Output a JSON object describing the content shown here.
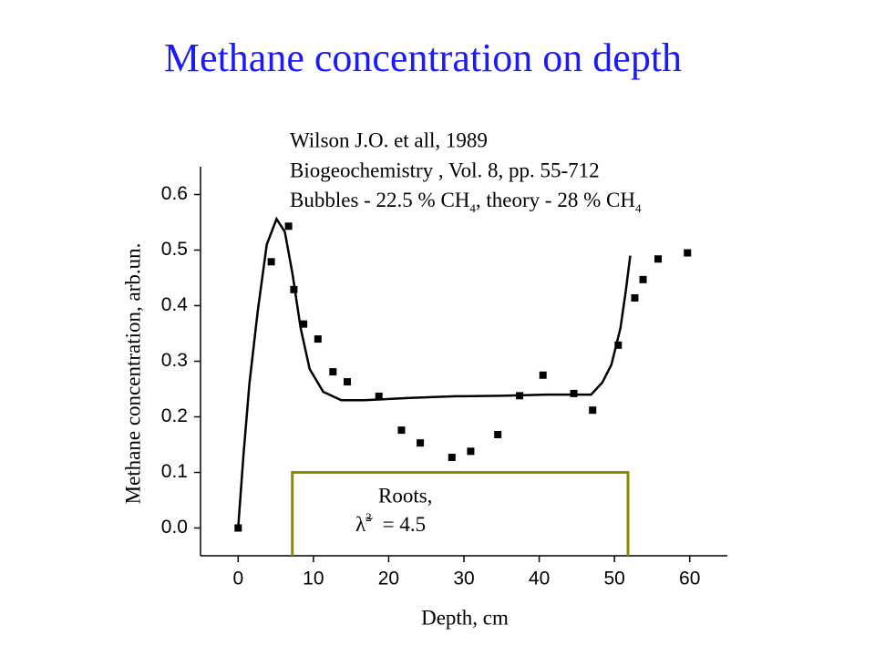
{
  "chart_data": {
    "type": "scatter",
    "title": "Methane concentration on depth",
    "x_label": "Depth, cm",
    "y_label": "Methane concentration, arb.un.",
    "reference": {
      "line1": "Wilson J.O. et all, 1989",
      "line2": "Biogeochemistry , Vol. 8, pp. 55-712",
      "line3": [
        "Bubbles - 22.5 % CH",
        "4",
        ", theory - 28 % CH",
        "4"
      ]
    },
    "annotation": {
      "text": "Roots,",
      "symbol": "λ̃",
      "superscript": "2",
      "value_text": "= 4.5",
      "x_range": [
        7.2,
        51.8
      ],
      "level": 0.1,
      "color": "#8b8b00"
    },
    "xlim": [
      -5,
      65
    ],
    "ylim": [
      -0.05,
      0.65
    ],
    "xticks": [
      0,
      10,
      20,
      30,
      40,
      50,
      60
    ],
    "yticks": [
      {
        "value": 0,
        "label": "0.0"
      },
      {
        "value": 0.1,
        "label": "0.1"
      },
      {
        "value": 0.2,
        "label": "0.2"
      },
      {
        "value": 0.3,
        "label": "0.3"
      },
      {
        "value": 0.4,
        "label": "0.4"
      },
      {
        "value": 0.5,
        "label": "0.5"
      },
      {
        "value": 0.6,
        "label": "0.6"
      }
    ],
    "series": [
      {
        "kind": "markers",
        "color": "#000000",
        "x": [
          0,
          4.4,
          6.7,
          7.4,
          8.7,
          10.6,
          12.6,
          14.5,
          18.7,
          21.7,
          24.2,
          28.4,
          30.9,
          34.5,
          37.4,
          40.5,
          44.6,
          47.1,
          50.5,
          52.7,
          53.8,
          55.8,
          59.7
        ],
        "y": [
          0,
          0.479,
          0.543,
          0.429,
          0.367,
          0.34,
          0.281,
          0.263,
          0.237,
          0.176,
          0.153,
          0.127,
          0.138,
          0.168,
          0.238,
          0.275,
          0.242,
          0.212,
          0.329,
          0.414,
          0.447,
          0.484,
          0.495
        ]
      },
      {
        "kind": "line",
        "color": "#000000",
        "x": [
          0,
          0.7,
          1.5,
          2.6,
          3.8,
          5.1,
          6.2,
          7.2,
          8.3,
          9.5,
          11.3,
          13.7,
          16.8,
          22.8,
          28.9,
          35,
          41,
          46.9,
          48.4,
          49.6,
          50.8,
          51.5,
          52.1
        ],
        "y": [
          0,
          0.13,
          0.26,
          0.39,
          0.51,
          0.556,
          0.533,
          0.459,
          0.36,
          0.286,
          0.245,
          0.23,
          0.23,
          0.234,
          0.237,
          0.238,
          0.24,
          0.24,
          0.262,
          0.294,
          0.36,
          0.426,
          0.49
        ]
      }
    ]
  }
}
